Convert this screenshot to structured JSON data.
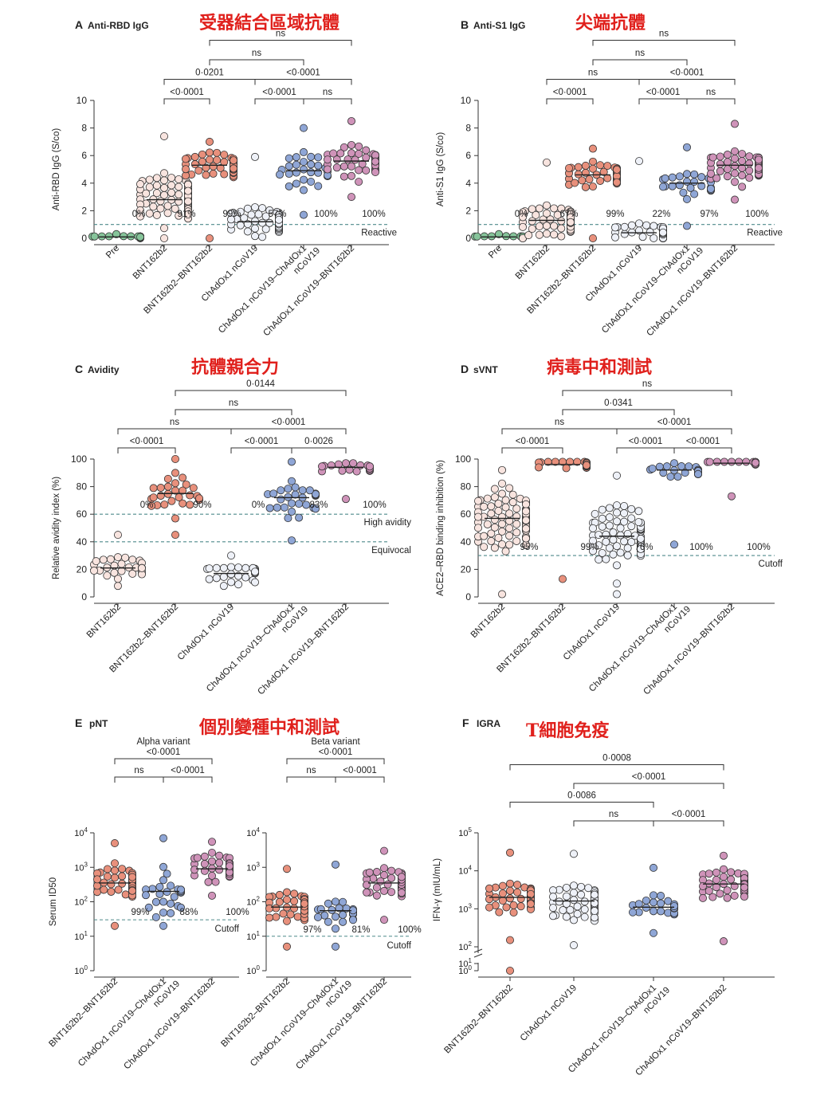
{
  "colors": {
    "pre": "#86c49a",
    "bnt": "#f8e4df",
    "bnt_bnt": "#e8907c",
    "chad": "#eef1f8",
    "chad_chad": "#8fa6d6",
    "chad_bnt": "#cf93b9",
    "dashed": "#4f8a8b",
    "red_title": "#e0201c"
  },
  "chart_data": [
    {
      "id": "A",
      "type": "scatter",
      "panel_letter": "A",
      "title": "Anti-RBD IgG",
      "chinese_title": "受器結合區域抗體",
      "ylabel": "Anti-RBD IgG (S/co)",
      "ylim": [
        0,
        10
      ],
      "yticks": [
        "0",
        "2",
        "4",
        "6",
        "8",
        "10"
      ],
      "cutoff": 1.0,
      "cutoff_label": "Reactive",
      "categories": [
        "Pre",
        "BNT162b2",
        "BNT162b2–BNT162b2",
        "ChAdOx1 nCoV19",
        "ChAdOx1 nCoV19–ChAdOx1 nCoV19",
        "ChAdOx1 nCoV19–BNT162b2"
      ],
      "category_labels": [
        [
          "Pre"
        ],
        [
          "BNT162b2"
        ],
        [
          "BNT162b2–BNT162b2"
        ],
        [
          "ChAdOx1 nCoV19"
        ],
        [
          "ChAdOx1 nCoV19–ChAdOx1",
          "nCoV19"
        ],
        [
          "ChAdOx1 nCoV19–BNT162b2"
        ]
      ],
      "percent_labels": [
        "0%",
        "91%",
        "99%",
        "57%",
        "100%",
        "100%"
      ],
      "series": [
        {
          "group": "Pre",
          "n": 40,
          "median": 0.1,
          "min": 0.0,
          "max": 0.3,
          "spread": 0.06,
          "color": "pre"
        },
        {
          "group": "BNT162b2",
          "n": 100,
          "median": 2.8,
          "min": 0.0,
          "max": 7.4,
          "spread": 1.4,
          "color": "bnt"
        },
        {
          "group": "BNT162b2–BNT162b2",
          "n": 100,
          "median": 5.3,
          "min": 0.0,
          "max": 7.0,
          "spread": 0.7,
          "color": "bnt_bnt"
        },
        {
          "group": "ChAdOx1 nCoV19",
          "n": 100,
          "median": 1.2,
          "min": 0.1,
          "max": 5.9,
          "spread": 0.75,
          "color": "chad"
        },
        {
          "group": "ChAdOx1 nCoV19–ChAdOx1 nCoV19",
          "n": 30,
          "median": 4.9,
          "min": 1.7,
          "max": 8.0,
          "spread": 1.2,
          "color": "chad_chad"
        },
        {
          "group": "ChAdOx1 nCoV19–BNT162b2",
          "n": 70,
          "median": 5.6,
          "min": 3.0,
          "max": 8.5,
          "spread": 1.0,
          "color": "chad_bnt"
        }
      ],
      "comparisons": [
        {
          "from": 1,
          "to": 2,
          "label": "<0·0001",
          "level": 0
        },
        {
          "from": 3,
          "to": 4,
          "label": "<0·0001",
          "level": 0
        },
        {
          "from": 4,
          "to": 5,
          "label": "ns",
          "level": 0
        },
        {
          "from": 1,
          "to": 3,
          "label": "0·0201",
          "level": 1
        },
        {
          "from": 3,
          "to": 5,
          "label": "<0·0001",
          "level": 1
        },
        {
          "from": 2,
          "to": 4,
          "label": "ns",
          "level": 2
        },
        {
          "from": 2,
          "to": 5,
          "label": "ns",
          "level": 3
        }
      ]
    },
    {
      "id": "B",
      "type": "scatter",
      "panel_letter": "B",
      "title": "Anti-S1 IgG",
      "chinese_title": "尖端抗體",
      "ylabel": "Anti-S1 IgG (S/co)",
      "ylim": [
        0,
        10
      ],
      "yticks": [
        "0",
        "2",
        "4",
        "6",
        "8",
        "10"
      ],
      "cutoff": 1.0,
      "cutoff_label": "Reactive",
      "categories": [
        "Pre",
        "BNT162b2",
        "BNT162b2–BNT162b2",
        "ChAdOx1 nCoV19",
        "ChAdOx1 nCoV19–ChAdOx1 nCoV19",
        "ChAdOx1 nCoV19–BNT162b2"
      ],
      "category_labels": [
        [
          "Pre"
        ],
        [
          "BNT162b2"
        ],
        [
          "BNT162b2–BNT162b2"
        ],
        [
          "ChAdOx1 nCoV19"
        ],
        [
          "ChAdOx1 nCoV19–ChAdOx1",
          "nCoV19"
        ],
        [
          "ChAdOx1 nCoV19–BNT162b2"
        ]
      ],
      "percent_labels": [
        "0%",
        "67%",
        "99%",
        "22%",
        "97%",
        "100%"
      ],
      "series": [
        {
          "group": "Pre",
          "n": 40,
          "median": 0.1,
          "min": 0.0,
          "max": 0.3,
          "spread": 0.06,
          "color": "pre"
        },
        {
          "group": "BNT162b2",
          "n": 100,
          "median": 1.3,
          "min": 0.0,
          "max": 5.5,
          "spread": 0.9,
          "color": "bnt"
        },
        {
          "group": "BNT162b2–BNT162b2",
          "n": 100,
          "median": 4.6,
          "min": 0.0,
          "max": 6.5,
          "spread": 0.7,
          "color": "bnt_bnt"
        },
        {
          "group": "ChAdOx1 nCoV19",
          "n": 100,
          "median": 0.4,
          "min": 0.0,
          "max": 5.6,
          "spread": 0.45,
          "color": "chad"
        },
        {
          "group": "ChAdOx1 nCoV19–ChAdOx1 nCoV19",
          "n": 30,
          "median": 4.0,
          "min": 0.9,
          "max": 6.6,
          "spread": 1.0,
          "color": "chad_chad"
        },
        {
          "group": "ChAdOx1 nCoV19–BNT162b2",
          "n": 70,
          "median": 5.3,
          "min": 2.8,
          "max": 8.3,
          "spread": 0.9,
          "color": "chad_bnt"
        }
      ],
      "comparisons": [
        {
          "from": 1,
          "to": 2,
          "label": "<0·0001",
          "level": 0
        },
        {
          "from": 3,
          "to": 4,
          "label": "<0·0001",
          "level": 0
        },
        {
          "from": 4,
          "to": 5,
          "label": "ns",
          "level": 0
        },
        {
          "from": 1,
          "to": 3,
          "label": "ns",
          "level": 1
        },
        {
          "from": 3,
          "to": 5,
          "label": "<0·0001",
          "level": 1
        },
        {
          "from": 2,
          "to": 4,
          "label": "ns",
          "level": 2
        },
        {
          "from": 2,
          "to": 5,
          "label": "ns",
          "level": 3
        }
      ]
    },
    {
      "id": "C",
      "type": "scatter",
      "panel_letter": "C",
      "title": "Avidity",
      "chinese_title": "抗體親合力",
      "ylabel": "Relative avidity index (%)",
      "ylim": [
        0,
        100
      ],
      "yticks": [
        "0",
        "20",
        "40",
        "60",
        "80",
        "100"
      ],
      "cutoffs": [
        {
          "value": 60,
          "label": "High avidity"
        },
        {
          "value": 40,
          "label": "Equivocal"
        }
      ],
      "categories": [
        "BNT162b2",
        "BNT162b2–BNT162b2",
        "ChAdOx1 nCoV19",
        "ChAdOx1 nCoV19–ChAdOx1 nCoV19",
        "ChAdOx1 nCoV19–BNT162b2"
      ],
      "category_labels": [
        [
          "BNT162b2"
        ],
        [
          "BNT162b2–BNT162b2"
        ],
        [
          "ChAdOx1 nCoV19"
        ],
        [
          "ChAdOx1 nCoV19–ChAdOx1",
          "nCoV19"
        ],
        [
          "ChAdOx1 nCoV19–BNT162b2"
        ]
      ],
      "percent_labels": [
        "0%",
        "90%",
        "0%",
        "83%",
        "100%"
      ],
      "series": [
        {
          "group": "BNT162b2",
          "n": 30,
          "median": 21,
          "min": 8,
          "max": 45,
          "spread": 8,
          "color": "bnt"
        },
        {
          "group": "BNT162b2–BNT162b2",
          "n": 30,
          "median": 75,
          "min": 45,
          "max": 100,
          "spread": 12,
          "color": "bnt_bnt"
        },
        {
          "group": "ChAdOx1 nCoV19",
          "n": 30,
          "median": 17,
          "min": 8,
          "max": 30,
          "spread": 6,
          "color": "chad"
        },
        {
          "group": "ChAdOx1 nCoV19–ChAdOx1 nCoV19",
          "n": 30,
          "median": 72,
          "min": 41,
          "max": 98,
          "spread": 11,
          "color": "chad_chad"
        },
        {
          "group": "ChAdOx1 nCoV19–BNT162b2",
          "n": 30,
          "median": 94,
          "min": 71,
          "max": 97,
          "spread": 2.5,
          "color": "chad_bnt"
        }
      ],
      "comparisons": [
        {
          "from": 0,
          "to": 1,
          "label": "<0·0001",
          "level": 0
        },
        {
          "from": 2,
          "to": 3,
          "label": "<0·0001",
          "level": 0
        },
        {
          "from": 3,
          "to": 4,
          "label": "0·0026",
          "level": 0
        },
        {
          "from": 0,
          "to": 2,
          "label": "ns",
          "level": 1
        },
        {
          "from": 2,
          "to": 4,
          "label": "<0·0001",
          "level": 1
        },
        {
          "from": 1,
          "to": 3,
          "label": "ns",
          "level": 2
        },
        {
          "from": 1,
          "to": 4,
          "label": "0·0144",
          "level": 3
        }
      ]
    },
    {
      "id": "D",
      "type": "scatter",
      "panel_letter": "D",
      "title": "sVNT",
      "chinese_title": "病毒中和測試",
      "ylabel": "ACE2–RBD binding inhibition (%)",
      "ylim": [
        0,
        100
      ],
      "yticks": [
        "0",
        "20",
        "40",
        "60",
        "80",
        "100"
      ],
      "cutoff": 30,
      "cutoff_label": "Cutoff",
      "categories": [
        "BNT162b2",
        "BNT162b2–BNT162b2",
        "ChAdOx1 nCoV19",
        "ChAdOx1 nCoV19–ChAdOx1 nCoV19",
        "ChAdOx1 nCoV19–BNT162b2"
      ],
      "category_labels": [
        [
          "BNT162b2"
        ],
        [
          "BNT162b2–BNT162b2"
        ],
        [
          "ChAdOx1 nCoV19"
        ],
        [
          "ChAdOx1 nCoV19–ChAdOx1",
          "nCoV19"
        ],
        [
          "ChAdOx1 nCoV19–BNT162b2"
        ]
      ],
      "percent_labels": [
        "95%",
        "99%",
        "76%",
        "100%",
        "100%"
      ],
      "series": [
        {
          "group": "BNT162b2",
          "n": 100,
          "median": 57,
          "min": 2,
          "max": 92,
          "spread": 18,
          "color": "bnt"
        },
        {
          "group": "BNT162b2–BNT162b2",
          "n": 100,
          "median": 96,
          "min": 13,
          "max": 98,
          "spread": 2,
          "color": "bnt_bnt"
        },
        {
          "group": "ChAdOx1 nCoV19",
          "n": 100,
          "median": 44,
          "min": 2,
          "max": 88,
          "spread": 18,
          "color": "chad"
        },
        {
          "group": "ChAdOx1 nCoV19–ChAdOx1 nCoV19",
          "n": 30,
          "median": 92,
          "min": 38,
          "max": 97,
          "spread": 5,
          "color": "chad_chad"
        },
        {
          "group": "ChAdOx1 nCoV19–BNT162b2",
          "n": 70,
          "median": 97,
          "min": 73,
          "max": 98,
          "spread": 1,
          "color": "chad_bnt"
        }
      ],
      "comparisons": [
        {
          "from": 0,
          "to": 1,
          "label": "<0·0001",
          "level": 0
        },
        {
          "from": 2,
          "to": 3,
          "label": "<0·0001",
          "level": 0
        },
        {
          "from": 3,
          "to": 4,
          "label": "<0·0001",
          "level": 0
        },
        {
          "from": 0,
          "to": 2,
          "label": "ns",
          "level": 1
        },
        {
          "from": 2,
          "to": 4,
          "label": "<0·0001",
          "level": 1
        },
        {
          "from": 1,
          "to": 3,
          "label": "0·0341",
          "level": 2
        },
        {
          "from": 1,
          "to": 4,
          "label": "ns",
          "level": 3
        }
      ]
    },
    {
      "id": "E",
      "type": "scatter",
      "panel_letter": "E",
      "title": "pNT",
      "chinese_title": "個別變種中和測試",
      "ylabel": "Serum ID50",
      "yscale": "log",
      "ylim": [
        1,
        10000
      ],
      "subpanels": [
        {
          "subtitle": "Alpha variant",
          "cutoff": 30,
          "cutoff_label": "Cutoff",
          "categories": [
            "BNT162b2–BNT162b2",
            "ChAdOx1 nCoV19–ChAdOx1 nCoV19",
            "ChAdOx1 nCoV19–BNT162b2"
          ],
          "category_labels": [
            [
              "BNT162b2–BNT162b2"
            ],
            [
              "ChAdOx1 nCoV19–ChAdOx1",
              "nCoV19"
            ],
            [
              "ChAdOx1 nCoV19–BNT162b2"
            ]
          ],
          "percent_labels": [
            "99%",
            "88%",
            "100%"
          ],
          "series": [
            {
              "group": "BNT162b2–BNT162b2",
              "n": 100,
              "median": 350,
              "min": 20,
              "max": 5000,
              "spread": 0.35,
              "color": "bnt_bnt"
            },
            {
              "group": "ChAdOx1 nCoV19–ChAdOx1 nCoV19",
              "n": 30,
              "median": 200,
              "min": 20,
              "max": 7000,
              "spread": 0.5,
              "color": "chad_chad"
            },
            {
              "group": "ChAdOx1 nCoV19–BNT162b2",
              "n": 70,
              "median": 900,
              "min": 150,
              "max": 5500,
              "spread": 0.3,
              "color": "chad_bnt"
            }
          ],
          "comparisons": [
            {
              "from": 0,
              "to": 1,
              "label": "ns",
              "level": 0
            },
            {
              "from": 1,
              "to": 2,
              "label": "<0·0001",
              "level": 0
            },
            {
              "from": 0,
              "to": 2,
              "label": "<0·0001",
              "level": 1
            }
          ]
        },
        {
          "subtitle": "Beta variant",
          "cutoff": 10,
          "cutoff_label": "Cutoff",
          "categories": [
            "BNT162b2–BNT162b2",
            "ChAdOx1 nCoV19–ChAdOx1 nCoV19",
            "ChAdOx1 nCoV19–BNT162b2"
          ],
          "category_labels": [
            [
              "BNT162b2–BNT162b2"
            ],
            [
              "ChAdOx1 nCoV19–ChAdOx1",
              "nCoV19"
            ],
            [
              "ChAdOx1 nCoV19–BNT162b2"
            ]
          ],
          "percent_labels": [
            "97%",
            "81%",
            "100%"
          ],
          "series": [
            {
              "group": "BNT162b2–BNT162b2",
              "n": 100,
              "median": 70,
              "min": 5,
              "max": 900,
              "spread": 0.35,
              "color": "bnt_bnt"
            },
            {
              "group": "ChAdOx1 nCoV19–ChAdOx1 nCoV19",
              "n": 30,
              "median": 55,
              "min": 5,
              "max": 1200,
              "spread": 0.5,
              "color": "chad_chad"
            },
            {
              "group": "ChAdOx1 nCoV19–BNT162b2",
              "n": 70,
              "median": 350,
              "min": 30,
              "max": 3000,
              "spread": 0.3,
              "color": "chad_bnt"
            }
          ],
          "comparisons": [
            {
              "from": 0,
              "to": 1,
              "label": "ns",
              "level": 0
            },
            {
              "from": 1,
              "to": 2,
              "label": "<0·0001",
              "level": 0
            },
            {
              "from": 0,
              "to": 2,
              "label": "<0·0001",
              "level": 1
            }
          ]
        }
      ]
    },
    {
      "id": "F",
      "type": "scatter",
      "panel_letter": "F",
      "title": "IGRA",
      "chinese_title": "T細胞免疫",
      "ylabel": "IFN-γ (mIU/mL)",
      "yscale": "log",
      "ylim": [
        1,
        100000
      ],
      "categories": [
        "BNT162b2–BNT162b2",
        "ChAdOx1 nCoV19",
        "ChAdOx1 nCoV19–ChAdOx1 nCoV19",
        "ChAdOx1 nCoV19–BNT162b2"
      ],
      "category_labels": [
        [
          "BNT162b2–BNT162b2"
        ],
        [
          "ChAdOx1 nCoV19"
        ],
        [
          "ChAdOx1 nCoV19–ChAdOx1",
          "nCoV19"
        ],
        [
          "ChAdOx1 nCoV19–BNT162b2"
        ]
      ],
      "series": [
        {
          "group": "BNT162b2–BNT162b2",
          "n": 60,
          "median": 2000,
          "min": 150,
          "max": 30000,
          "spread": 0.35,
          "color": "bnt_bnt"
        },
        {
          "group": "ChAdOx1 nCoV19",
          "n": 70,
          "median": 1600,
          "min": 110,
          "max": 28000,
          "spread": 0.35,
          "color": "chad"
        },
        {
          "group": "ChAdOx1 nCoV19–ChAdOx1 nCoV19",
          "n": 30,
          "median": 1100,
          "min": 230,
          "max": 12000,
          "spread": 0.25,
          "color": "chad_chad"
        },
        {
          "group": "ChAdOx1 nCoV19–BNT162b2",
          "n": 70,
          "median": 4500,
          "min": 140,
          "max": 25000,
          "spread": 0.3,
          "color": "chad_bnt"
        }
      ],
      "comparisons": [
        {
          "from": 1,
          "to": 2,
          "label": "ns",
          "level": 0
        },
        {
          "from": 2,
          "to": 3,
          "label": "<0·0001",
          "level": 0
        },
        {
          "from": 0,
          "to": 2,
          "label": "0·0086",
          "level": 1
        },
        {
          "from": 1,
          "to": 3,
          "label": "<0·0001",
          "level": 2
        },
        {
          "from": 0,
          "to": 3,
          "label": "0·0008",
          "level": 3
        }
      ]
    }
  ]
}
